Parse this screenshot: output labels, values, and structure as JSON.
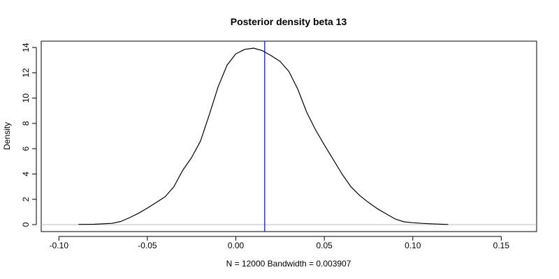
{
  "chart_data": {
    "type": "line",
    "title": "Posterior density beta 13",
    "xlabel": "N = 12000   Bandwidth = 0.003907",
    "ylabel": "Density",
    "xlim": [
      -0.11,
      0.17
    ],
    "ylim": [
      -0.55,
      14.5
    ],
    "x_ticks": [
      -0.1,
      -0.05,
      0.0,
      0.05,
      0.1,
      0.15
    ],
    "x_tick_labels": [
      "-0.10",
      "-0.05",
      "0.00",
      "0.05",
      "0.10",
      "0.15"
    ],
    "y_ticks": [
      0,
      2,
      4,
      6,
      8,
      10,
      12,
      14
    ],
    "y_tick_labels": [
      "0",
      "2",
      "4",
      "6",
      "8",
      "10",
      "12",
      "14"
    ],
    "grid": false,
    "zero_line": {
      "y": 0,
      "color": "#bebebe"
    },
    "vertical_line": {
      "x": 0.0163,
      "color": "#0000ff"
    },
    "series": [
      {
        "color": "#000000",
        "x": [
          -0.089,
          -0.08,
          -0.07,
          -0.065,
          -0.06,
          -0.055,
          -0.05,
          -0.045,
          -0.04,
          -0.035,
          -0.03,
          -0.025,
          -0.02,
          -0.015,
          -0.01,
          -0.005,
          0.0,
          0.005,
          0.01,
          0.015,
          0.02,
          0.025,
          0.03,
          0.035,
          0.04,
          0.045,
          0.05,
          0.055,
          0.06,
          0.065,
          0.07,
          0.075,
          0.08,
          0.085,
          0.09,
          0.095,
          0.1,
          0.105,
          0.11,
          0.115,
          0.12
        ],
        "y": [
          0.02,
          0.03,
          0.1,
          0.25,
          0.55,
          0.9,
          1.3,
          1.75,
          2.2,
          3.0,
          4.3,
          5.3,
          6.6,
          8.7,
          10.9,
          12.6,
          13.5,
          13.85,
          13.95,
          13.75,
          13.35,
          12.9,
          12.1,
          10.7,
          8.9,
          7.5,
          6.3,
          5.15,
          4.0,
          3.0,
          2.3,
          1.75,
          1.25,
          0.85,
          0.45,
          0.22,
          0.15,
          0.1,
          0.07,
          0.04,
          0.01
        ]
      }
    ]
  }
}
